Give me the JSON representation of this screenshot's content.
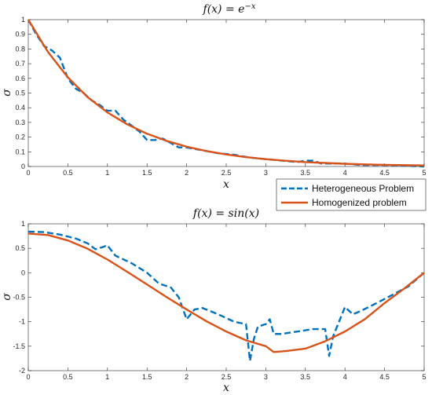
{
  "legend": {
    "placement": "between-plots-right",
    "entries": [
      "Heterogeneous Problem",
      "Homogenized problem"
    ]
  },
  "colors": {
    "heterogeneous": "#0072BD",
    "homogenized": "#D95319",
    "axis": "#262626"
  },
  "chart_data": [
    {
      "type": "line",
      "title": "f(x) = e^{-x}",
      "title_display": {
        "base": "f(x) = e",
        "sup": "−x"
      },
      "xlabel": "x",
      "ylabel": "σ",
      "xlim": [
        0,
        5
      ],
      "ylim": [
        0,
        1
      ],
      "xticks": [
        0,
        0.5,
        1,
        1.5,
        2,
        2.5,
        3,
        3.5,
        4,
        4.5,
        5
      ],
      "yticks": [
        0,
        0.1,
        0.2,
        0.3,
        0.4,
        0.5,
        0.6,
        0.7,
        0.8,
        0.9,
        1
      ],
      "grid": false,
      "series": [
        {
          "name": "Heterogeneous Problem",
          "style": "dashed",
          "x": [
            0,
            0.1,
            0.2,
            0.3,
            0.4,
            0.5,
            0.6,
            0.7,
            0.8,
            0.9,
            1.0,
            1.1,
            1.2,
            1.3,
            1.4,
            1.5,
            1.6,
            1.7,
            1.8,
            1.9,
            2.0,
            2.2,
            2.4,
            2.6,
            2.8,
            3.0,
            3.2,
            3.4,
            3.5,
            3.6,
            3.7,
            3.8,
            4.0,
            4.2,
            4.5,
            5.0
          ],
          "y": [
            1.0,
            0.9,
            0.82,
            0.79,
            0.74,
            0.6,
            0.53,
            0.5,
            0.45,
            0.42,
            0.38,
            0.38,
            0.32,
            0.28,
            0.24,
            0.18,
            0.18,
            0.19,
            0.16,
            0.13,
            0.13,
            0.11,
            0.09,
            0.08,
            0.06,
            0.05,
            0.04,
            0.03,
            0.04,
            0.04,
            0.02,
            0.02,
            0.02,
            0.01,
            0.01,
            0.0
          ]
        },
        {
          "name": "Homogenized problem",
          "style": "solid",
          "x": [
            0,
            0.25,
            0.5,
            0.75,
            1.0,
            1.25,
            1.5,
            1.75,
            2.0,
            2.25,
            2.5,
            2.75,
            3.0,
            3.25,
            3.5,
            3.75,
            4.0,
            4.25,
            4.5,
            4.75,
            5.0
          ],
          "y": [
            1.0,
            0.779,
            0.607,
            0.472,
            0.368,
            0.287,
            0.223,
            0.174,
            0.135,
            0.105,
            0.082,
            0.064,
            0.05,
            0.039,
            0.03,
            0.024,
            0.018,
            0.014,
            0.011,
            0.009,
            0.007
          ]
        }
      ]
    },
    {
      "type": "line",
      "title": "f(x) = sin(x)",
      "title_display": {
        "base": "f(x) = sin(x)",
        "sup": ""
      },
      "xlabel": "x",
      "ylabel": "σ",
      "xlim": [
        0,
        5
      ],
      "ylim": [
        -2,
        1
      ],
      "xticks": [
        0,
        0.5,
        1,
        1.5,
        2,
        2.5,
        3,
        3.5,
        4,
        4.5,
        5
      ],
      "yticks": [
        -2,
        -1.5,
        -1,
        -0.5,
        0,
        0.5,
        1
      ],
      "grid": false,
      "series": [
        {
          "name": "Heterogeneous Problem",
          "style": "dashed",
          "x": [
            0,
            0.2,
            0.4,
            0.6,
            0.75,
            0.85,
            0.95,
            1.0,
            1.1,
            1.3,
            1.5,
            1.65,
            1.8,
            1.9,
            2.0,
            2.1,
            2.2,
            2.4,
            2.6,
            2.75,
            2.8,
            2.85,
            2.9,
            3.0,
            3.05,
            3.1,
            3.2,
            3.4,
            3.6,
            3.75,
            3.8,
            3.85,
            3.95,
            4.0,
            4.1,
            4.2,
            4.4,
            4.6,
            4.8,
            5.0
          ],
          "y": [
            0.84,
            0.83,
            0.78,
            0.7,
            0.6,
            0.48,
            0.53,
            0.56,
            0.35,
            0.2,
            0.0,
            -0.22,
            -0.3,
            -0.5,
            -0.95,
            -0.75,
            -0.72,
            -0.85,
            -1.0,
            -1.05,
            -1.8,
            -1.35,
            -1.1,
            -1.05,
            -0.95,
            -1.25,
            -1.25,
            -1.2,
            -1.15,
            -1.15,
            -1.7,
            -1.3,
            -0.9,
            -0.7,
            -0.85,
            -0.78,
            -0.62,
            -0.45,
            -0.28,
            0.0
          ]
        },
        {
          "name": "Homogenized problem",
          "style": "solid",
          "x": [
            0,
            0.25,
            0.5,
            0.75,
            1.0,
            1.25,
            1.5,
            1.75,
            2.0,
            2.25,
            2.5,
            2.75,
            3.0,
            3.1,
            3.25,
            3.5,
            3.75,
            4.0,
            4.25,
            4.5,
            4.75,
            5.0
          ],
          "y": [
            0.8,
            0.77,
            0.66,
            0.49,
            0.27,
            0.02,
            -0.24,
            -0.5,
            -0.75,
            -0.99,
            -1.2,
            -1.38,
            -1.5,
            -1.62,
            -1.6,
            -1.55,
            -1.4,
            -1.2,
            -0.95,
            -0.62,
            -0.32,
            0.0
          ]
        }
      ]
    }
  ]
}
